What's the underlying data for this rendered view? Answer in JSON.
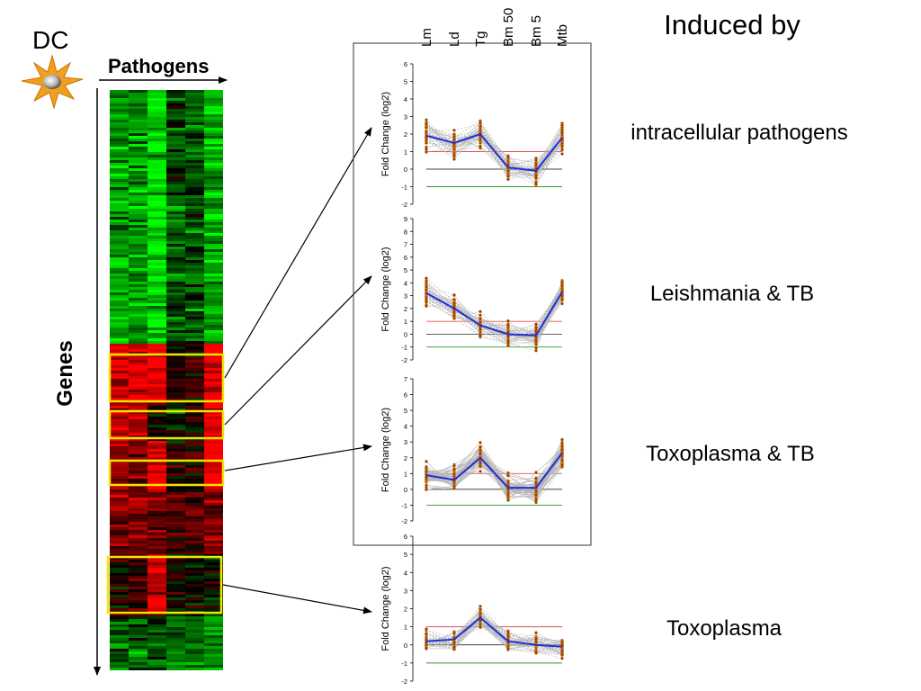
{
  "labels": {
    "dc": "DC",
    "pathogens": "Pathogens",
    "genes": "Genes",
    "induced_by": "Induced by",
    "y_axis": "Fold Change (log2)"
  },
  "pathogen_columns": [
    "Lm",
    "Ld",
    "Tg",
    "Bm 50",
    "Bm 5",
    "Mtb"
  ],
  "clusters": [
    {
      "label": "intracellular pathogens",
      "ticks": [
        "6",
        "5",
        "4",
        "3",
        "2",
        "1",
        "0",
        "-1",
        "-2"
      ],
      "means": [
        1.9,
        1.5,
        2.0,
        0.1,
        -0.1,
        1.8
      ]
    },
    {
      "label": "Leishmania & TB",
      "ticks": [
        "9",
        "8",
        "7",
        "6",
        "5",
        "4",
        "3",
        "2",
        "1",
        "0",
        "-1",
        "-2"
      ],
      "means": [
        3.2,
        2.0,
        0.7,
        0.0,
        -0.1,
        3.3
      ]
    },
    {
      "label": "Toxoplasma & TB",
      "ticks": [
        "7",
        "6",
        "5",
        "4",
        "3",
        "2",
        "1",
        "0",
        "-1",
        "-2"
      ],
      "means": [
        0.9,
        0.6,
        2.0,
        0.1,
        0.1,
        2.3
      ]
    },
    {
      "label": "Toxoplasma",
      "ticks": [
        "6",
        "5",
        "4",
        "3",
        "2",
        "1",
        "0",
        "-1",
        "-2"
      ],
      "means": [
        0.2,
        0.3,
        1.5,
        0.2,
        0.0,
        -0.1
      ]
    }
  ],
  "colors": {
    "mean_line": "#1f2fd6",
    "threshold_up": "#e05050",
    "threshold_down": "#2f9a2f",
    "highlight": "#f2e600",
    "points": "#8a3a10"
  }
}
